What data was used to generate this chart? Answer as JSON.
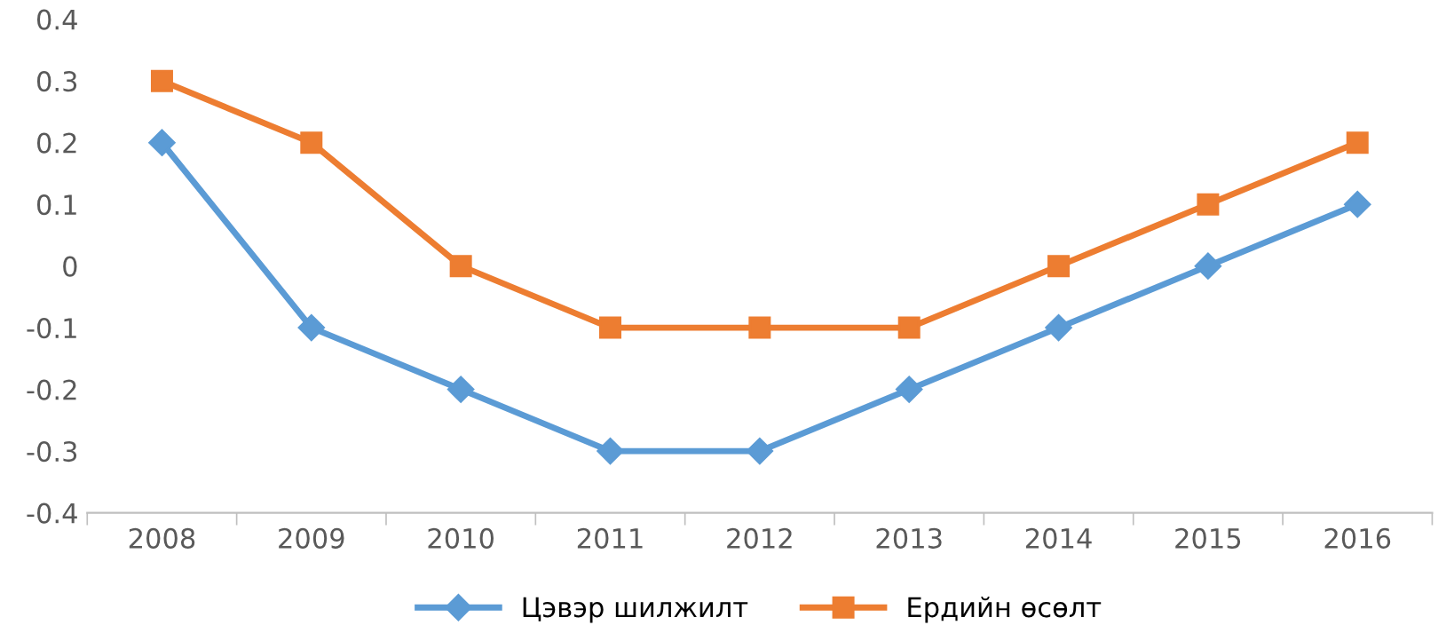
{
  "chart_data": {
    "type": "line",
    "categories": [
      "2008",
      "2009",
      "2010",
      "2011",
      "2012",
      "2013",
      "2014",
      "2015",
      "2016"
    ],
    "series": [
      {
        "name": "Цэвэр шилжилт",
        "color": "#5b9bd5",
        "marker": "diamond",
        "values": [
          0.2,
          -0.1,
          -0.2,
          -0.3,
          -0.3,
          -0.2,
          -0.1,
          0,
          0.1
        ]
      },
      {
        "name": "Ердийн өсөлт",
        "color": "#ed7d31",
        "marker": "square",
        "values": [
          0.3,
          0.2,
          0,
          -0.1,
          -0.1,
          -0.1,
          0,
          0.1,
          0.2
        ]
      }
    ],
    "ylim": [
      -0.4,
      0.4
    ],
    "yticks": [
      -0.4,
      -0.3,
      -0.2,
      -0.1,
      0,
      0.1,
      0.2,
      0.3,
      0.4
    ],
    "grid": false,
    "legend": "bottom",
    "line_style": "solid"
  }
}
